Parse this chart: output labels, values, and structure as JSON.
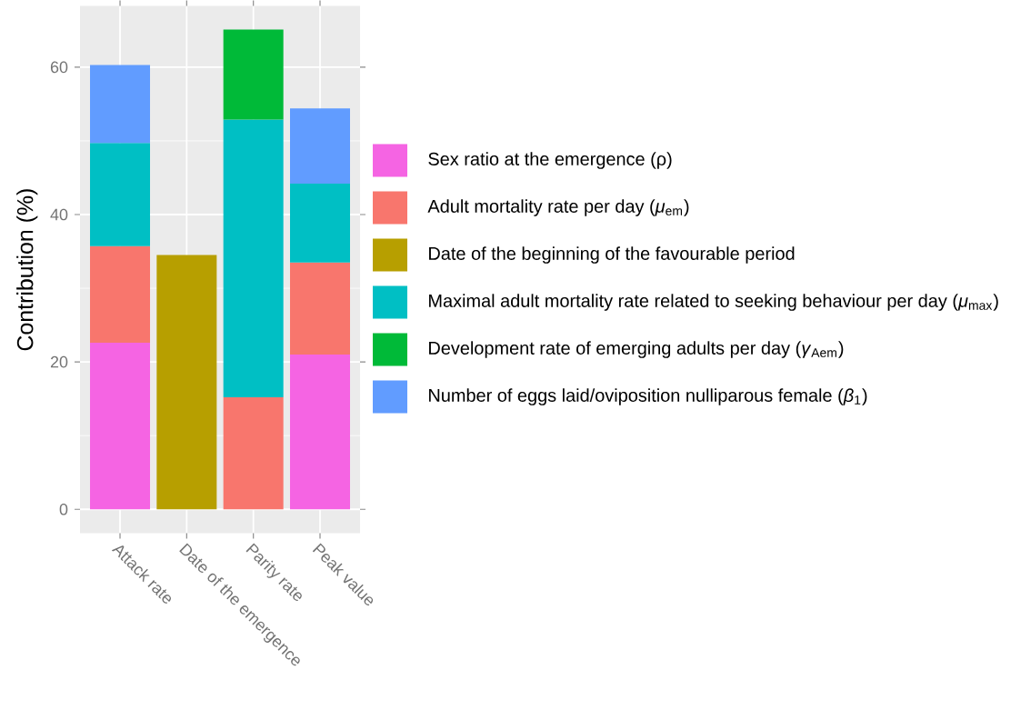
{
  "chart_data": {
    "type": "bar",
    "stacked": true,
    "ylabel": "Contribution (%)",
    "categories": [
      "Attack rate",
      "Date of the emergence",
      "Parity rate",
      "Peak value"
    ],
    "ylim": [
      -3.25,
      68.3
    ],
    "yticks": [
      0,
      20,
      40,
      60
    ],
    "grid": true,
    "legend": "right",
    "series": [
      {
        "name": "Sex ratio at the emergence (ρ)",
        "color": "#f564e3",
        "values": [
          22.6,
          null,
          null,
          21.0
        ]
      },
      {
        "name": "Adult mortality rate per day (*μ*$_{em}$)",
        "color": "#f8766d",
        "values": [
          13.1,
          null,
          15.2,
          12.5
        ]
      },
      {
        "name": "Date of the beginning of the favourable period",
        "color": "#b79f00",
        "values": [
          null,
          34.5,
          null,
          null
        ]
      },
      {
        "name": "Maximal adult mortality rate related to seeking behaviour per day (*μ*$_{max}$)",
        "color": "#00bfc4",
        "values": [
          14.0,
          null,
          37.7,
          10.7
        ]
      },
      {
        "name": "Development rate of emerging adults per day (*γ*$_{Aem}$)",
        "color": "#00ba38",
        "values": [
          null,
          null,
          12.2,
          null
        ]
      },
      {
        "name": "Number of eggs laid/oviposition nulliparous female (*β*$_{1}$)",
        "color": "#619cff",
        "values": [
          10.6,
          null,
          null,
          10.2
        ]
      }
    ]
  }
}
